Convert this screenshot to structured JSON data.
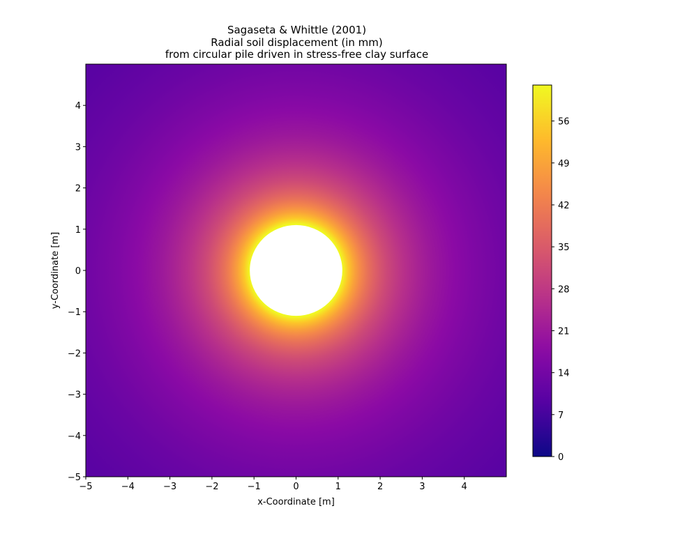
{
  "chart_data": {
    "type": "heatmap",
    "title_lines": [
      "Sagaseta & Whittle (2001)",
      "Radial soil displacement (in mm)",
      "from circular pile driven in stress-free clay surface"
    ],
    "xlabel": "x-Coordinate [m]",
    "ylabel": "y-Coordinate [m]",
    "xlim": [
      -5,
      5
    ],
    "ylim": [
      -5,
      5
    ],
    "xticks": [
      "−5",
      "−4",
      "−3",
      "−2",
      "−1",
      "0",
      "1",
      "2",
      "3",
      "4"
    ],
    "yticks": [
      "−5",
      "−4",
      "−3",
      "−2",
      "−1",
      "0",
      "1",
      "2",
      "3",
      "4"
    ],
    "xtick_values": [
      -5,
      -4,
      -3,
      -2,
      -1,
      0,
      1,
      2,
      3,
      4
    ],
    "ytick_values": [
      -5,
      -4,
      -3,
      -2,
      -1,
      0,
      1,
      2,
      3,
      4
    ],
    "colormap": "plasma",
    "colorbar": {
      "range": [
        0,
        62
      ],
      "ticks": [
        "0",
        "7",
        "14",
        "21",
        "28",
        "35",
        "42",
        "49",
        "56"
      ],
      "tick_values": [
        0,
        7,
        14,
        21,
        28,
        35,
        42,
        49,
        56
      ]
    },
    "field": {
      "pile_radius_m": 1.1,
      "value_at_pile_edge_mm": 62,
      "value_at_corner_mm": 9.4,
      "center": [
        0,
        0
      ],
      "pile_fill": "#ffffff"
    },
    "grid": false,
    "legend": "none"
  }
}
